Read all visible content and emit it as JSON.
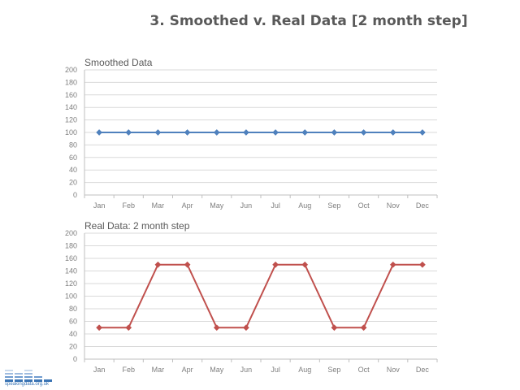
{
  "page": {
    "title": "3. Smoothed v. Real Data [2 month step]"
  },
  "logo": {
    "text": "speakingdata.org.uk",
    "color": "#3a74b4"
  },
  "chart_data": [
    {
      "type": "line",
      "title": "Smoothed Data",
      "categories": [
        "Jan",
        "Feb",
        "Mar",
        "Apr",
        "May",
        "Jun",
        "Jul",
        "Aug",
        "Sep",
        "Oct",
        "Nov",
        "Dec"
      ],
      "series": [
        {
          "values": [
            100,
            100,
            100,
            100,
            100,
            100,
            100,
            100,
            100,
            100,
            100,
            100
          ],
          "color": "#4f81bd"
        }
      ],
      "ylim": [
        0,
        200
      ],
      "yticks": [
        0,
        20,
        40,
        60,
        80,
        100,
        120,
        140,
        160,
        180,
        200
      ],
      "grid": true,
      "marker": "diamond"
    },
    {
      "type": "line",
      "title": "Real Data: 2 month step",
      "categories": [
        "Jan",
        "Feb",
        "Mar",
        "Apr",
        "May",
        "Jun",
        "Jul",
        "Aug",
        "Sep",
        "Oct",
        "Nov",
        "Dec"
      ],
      "series": [
        {
          "values": [
            50,
            50,
            150,
            150,
            50,
            50,
            150,
            150,
            50,
            50,
            150,
            150
          ],
          "color": "#c0504d"
        }
      ],
      "ylim": [
        0,
        200
      ],
      "yticks": [
        0,
        20,
        40,
        60,
        80,
        100,
        120,
        140,
        160,
        180,
        200
      ],
      "grid": true,
      "marker": "diamond"
    }
  ]
}
